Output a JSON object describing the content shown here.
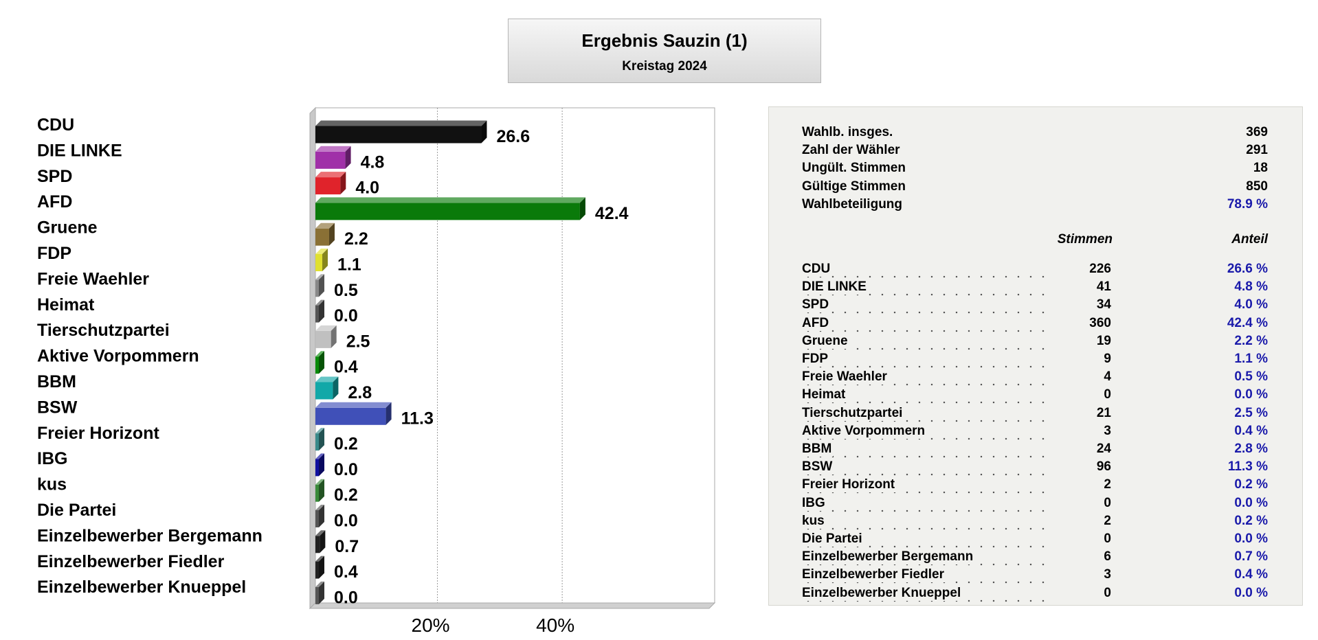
{
  "title": "Ergebnis Sauzin (1)",
  "subtitle": "Kreistag 2024",
  "summary": [
    {
      "label": "Wahlb. insges.",
      "value": "369",
      "blue": false
    },
    {
      "label": "Zahl der Wähler",
      "value": "291",
      "blue": false
    },
    {
      "label": "Ungült. Stimmen",
      "value": "18",
      "blue": false
    },
    {
      "label": "Gültige Stimmen",
      "value": "850",
      "blue": false
    },
    {
      "label": "Wahlbeteiligung",
      "value": "78.9 %",
      "blue": true
    }
  ],
  "table_headers": {
    "votes": "Stimmen",
    "share": "Anteil"
  },
  "parties": [
    {
      "name": "CDU",
      "votes": "226",
      "share": "26.6 %"
    },
    {
      "name": "DIE LINKE",
      "votes": "41",
      "share": "4.8 %"
    },
    {
      "name": "SPD",
      "votes": "34",
      "share": "4.0 %"
    },
    {
      "name": "AFD",
      "votes": "360",
      "share": "42.4 %"
    },
    {
      "name": "Gruene",
      "votes": "19",
      "share": "2.2 %"
    },
    {
      "name": "FDP",
      "votes": "9",
      "share": "1.1 %"
    },
    {
      "name": "Freie Waehler",
      "votes": "4",
      "share": "0.5 %"
    },
    {
      "name": "Heimat",
      "votes": "0",
      "share": "0.0 %"
    },
    {
      "name": "Tierschutzpartei",
      "votes": "21",
      "share": "2.5 %"
    },
    {
      "name": "Aktive Vorpommern",
      "votes": "3",
      "share": "0.4 %"
    },
    {
      "name": "BBM",
      "votes": "24",
      "share": "2.8 %"
    },
    {
      "name": "BSW",
      "votes": "96",
      "share": "11.3 %"
    },
    {
      "name": "Freier Horizont",
      "votes": "2",
      "share": "0.2 %"
    },
    {
      "name": "IBG",
      "votes": "0",
      "share": "0.0 %"
    },
    {
      "name": "kus",
      "votes": "2",
      "share": "0.2 %"
    },
    {
      "name": "Die Partei",
      "votes": "0",
      "share": "0.0 %"
    },
    {
      "name": "Einzelbewerber Bergemann",
      "votes": "6",
      "share": "0.7 %"
    },
    {
      "name": "Einzelbewerber Fiedler",
      "votes": "3",
      "share": "0.4 %"
    },
    {
      "name": "Einzelbewerber Knueppel",
      "votes": "0",
      "share": "0.0 %"
    }
  ],
  "chart_data": {
    "type": "bar",
    "orientation": "horizontal",
    "categories": [
      "CDU",
      "DIE LINKE",
      "SPD",
      "AFD",
      "Gruene",
      "FDP",
      "Freie Waehler",
      "Heimat",
      "Tierschutzpartei",
      "Aktive Vorpommern",
      "BBM",
      "BSW",
      "Freier Horizont",
      "IBG",
      "kus",
      "Die Partei",
      "Einzelbewerber Bergemann",
      "Einzelbewerber Fiedler",
      "Einzelbewerber Knueppel"
    ],
    "values": [
      26.6,
      4.8,
      4.0,
      42.4,
      2.2,
      1.1,
      0.5,
      0.0,
      2.5,
      0.4,
      2.8,
      11.3,
      0.2,
      0.0,
      0.2,
      0.0,
      0.7,
      0.4,
      0.0
    ],
    "value_labels": [
      "26.6",
      "4.8",
      "4.0",
      "42.4",
      "2.2",
      "1.1",
      "0.5",
      "0.0",
      "2.5",
      "0.4",
      "2.8",
      "11.3",
      "0.2",
      "0.0",
      "0.2",
      "0.0",
      "0.7",
      "0.4",
      "0.0"
    ],
    "colors": [
      "#111111",
      "#a030a8",
      "#e0232b",
      "#0a7a0a",
      "#8a7035",
      "#e0e030",
      "#888888",
      "#555555",
      "#c0c0c0",
      "#0a8a0a",
      "#12a8a8",
      "#4050b8",
      "#3a8a8a",
      "#1010a0",
      "#3a8a3a",
      "#555555",
      "#222222",
      "#222222",
      "#555555"
    ],
    "xlim": [
      0,
      64
    ],
    "xticks": [
      {
        "value": 20,
        "label": "20%"
      },
      {
        "value": 40,
        "label": "40%"
      }
    ],
    "grid": true
  }
}
